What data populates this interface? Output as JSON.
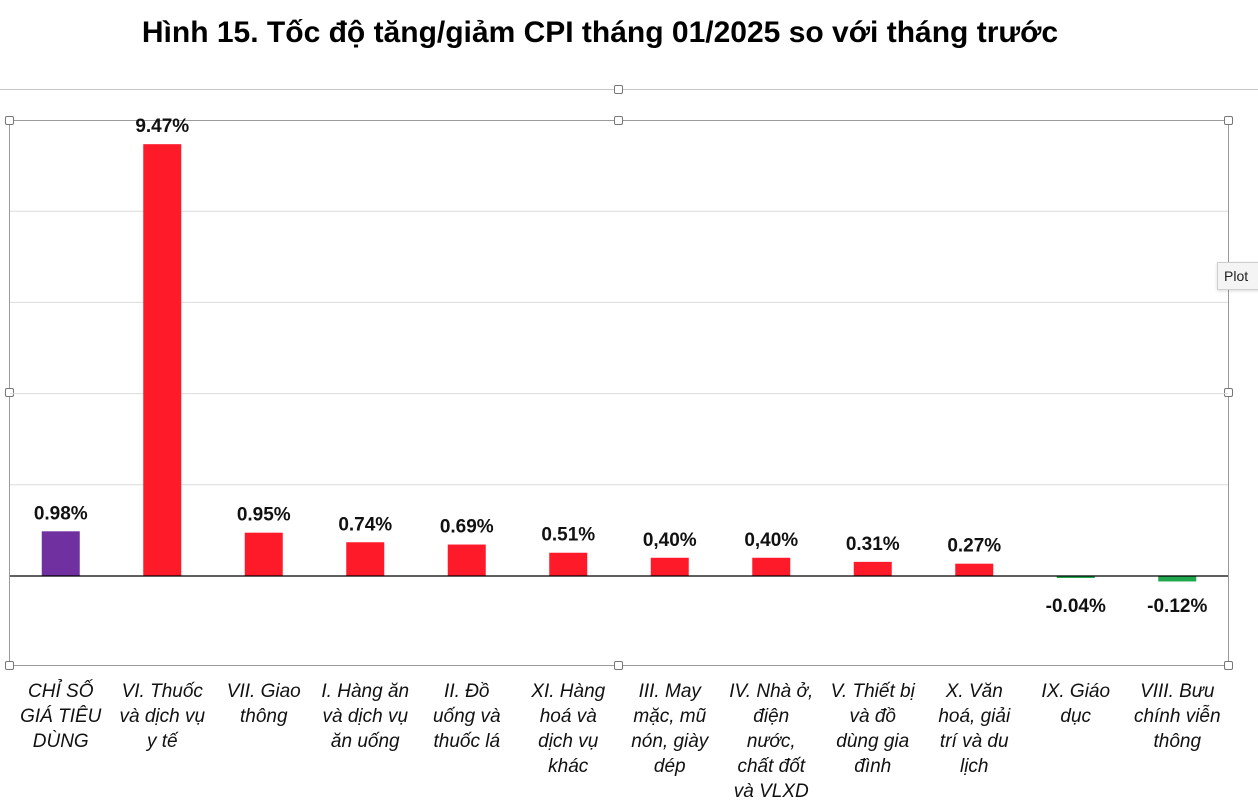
{
  "title": "Hình 15. Tốc độ tăng/giảm CPI tháng 01/2025 so với tháng trước",
  "tooltip": "Plot",
  "colors": {
    "total": "#7030A0",
    "increase": "#FF1A2A",
    "decrease": "#21A84F",
    "grid": "#dcdcdc",
    "axis": "#000000"
  },
  "chart_data": {
    "type": "bar",
    "title": "Hình 15. Tốc độ tăng/giảm CPI tháng 01/2025 so với tháng trước",
    "xlabel": "",
    "ylabel": "",
    "ylim": [
      -1,
      10
    ],
    "grid": true,
    "categories": [
      "CHỈ SỐ GIÁ TIÊU DÙNG",
      "VI. Thuốc và dịch vụ y tế",
      "VII. Giao thông",
      "I. Hàng ăn và dịch vụ ăn uống",
      "II. Đồ uống và thuốc lá",
      "XI. Hàng hoá và dịch vụ khác",
      "III. May mặc, mũ nón, giày dép",
      "IV. Nhà ở, điện nước, chất đốt và VLXD",
      "V. Thiết bị và đồ dùng gia đình",
      "X. Văn hoá, giải trí và du lịch",
      "IX. Giáo dục",
      "VIII. Bưu chính viễn thông"
    ],
    "category_lines": [
      [
        "CHỈ SỐ",
        "GIÁ TIÊU",
        "DÙNG"
      ],
      [
        "VI. Thuốc",
        "và dịch vụ",
        "y tế"
      ],
      [
        "VII. Giao",
        "thông"
      ],
      [
        "I. Hàng ăn",
        "và dịch vụ",
        "ăn uống"
      ],
      [
        "II. Đồ",
        "uống và",
        "thuốc lá"
      ],
      [
        "XI. Hàng",
        "hoá và",
        "dịch vụ",
        "khác"
      ],
      [
        "III. May",
        "mặc, mũ",
        "nón, giày",
        "dép"
      ],
      [
        "IV. Nhà ở,",
        "điện",
        "nước,",
        "chất đốt",
        "và VLXD"
      ],
      [
        "V. Thiết bị",
        "và đồ",
        "dùng gia",
        "đình"
      ],
      [
        "X. Văn",
        "hoá, giải",
        "trí và du",
        "lịch"
      ],
      [
        "IX. Giáo",
        "dục"
      ],
      [
        "VIII. Bưu",
        "chính viễn",
        "thông"
      ]
    ],
    "values": [
      0.98,
      9.47,
      0.95,
      0.74,
      0.69,
      0.51,
      0.4,
      0.4,
      0.31,
      0.27,
      -0.04,
      -0.12
    ],
    "data_labels": [
      "0.98%",
      "9.47%",
      "0.95%",
      "0.74%",
      "0.69%",
      "0.51%",
      "0,40%",
      "0,40%",
      "0.31%",
      "0.27%",
      "-0.04%",
      "-0.12%"
    ]
  }
}
